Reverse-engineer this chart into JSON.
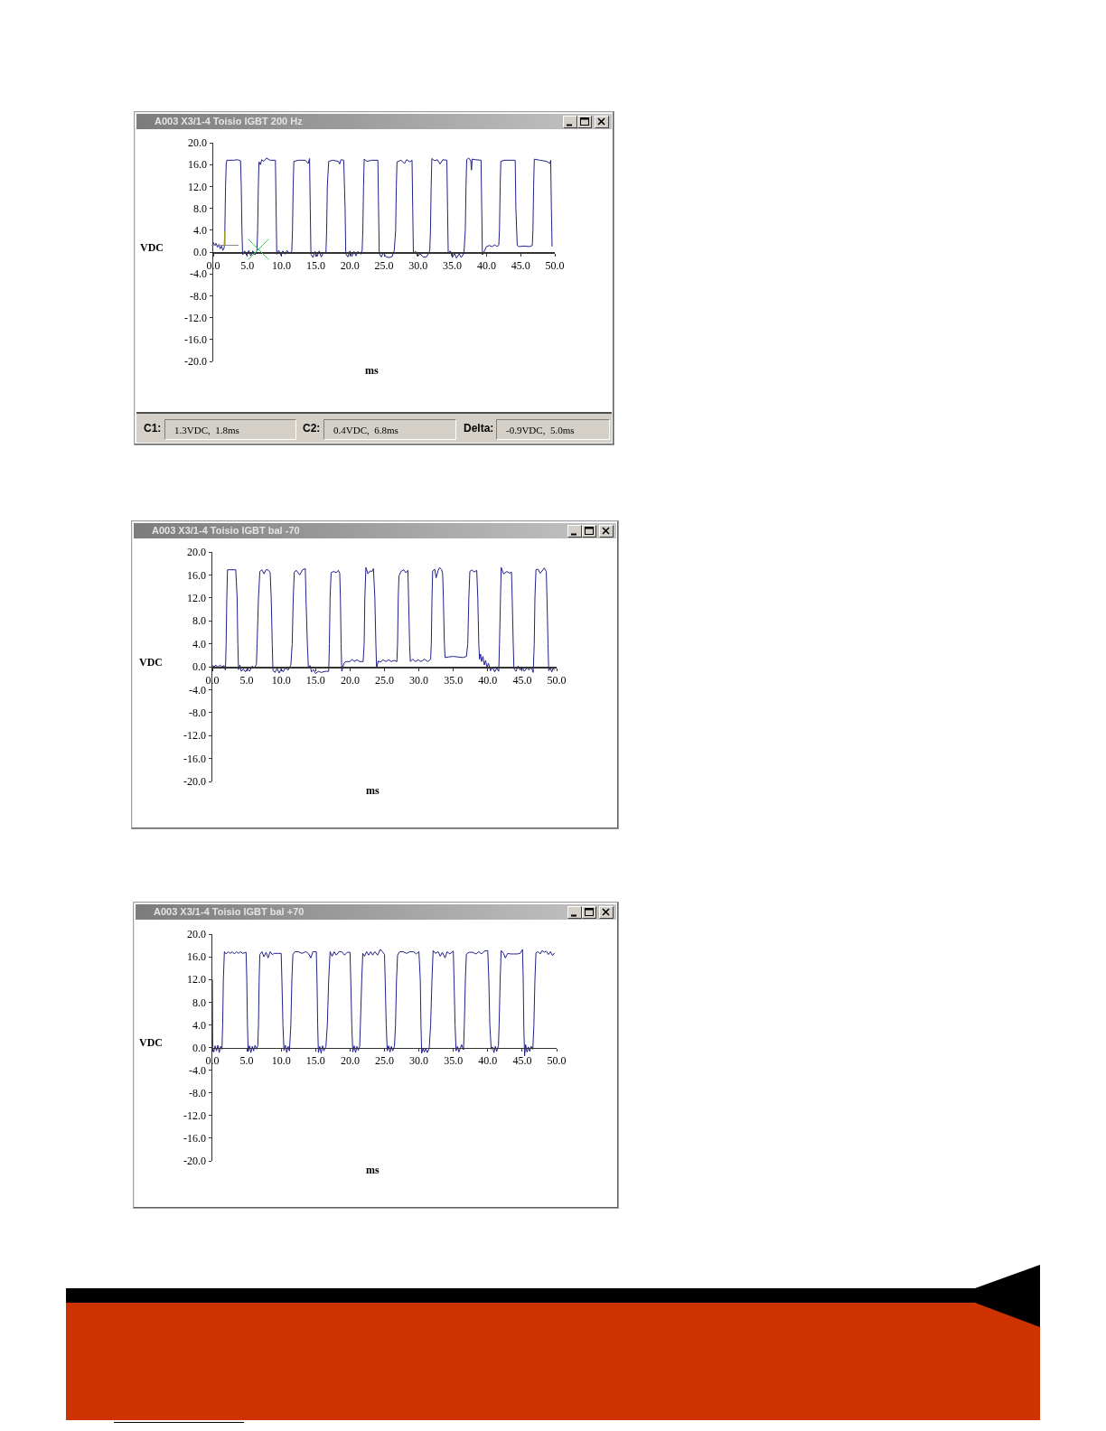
{
  "chart_data": [
    {
      "type": "line",
      "title": "A003 X3/1-4 Toisio IGBT 200 Hz",
      "xlabel": "ms",
      "ylabel": "VDC",
      "color": "#20208a",
      "xlim": [
        0,
        50
      ],
      "xticks": [
        {
          "value": 0,
          "label": "0.0"
        },
        {
          "value": 5,
          "label": "5.0"
        },
        {
          "value": 10,
          "label": "10.0"
        },
        {
          "value": 15,
          "label": "15.0"
        },
        {
          "value": 20,
          "label": "20.0"
        },
        {
          "value": 25,
          "label": "25.0"
        },
        {
          "value": 30,
          "label": "30.0"
        },
        {
          "value": 35,
          "label": "35.0"
        },
        {
          "value": 40,
          "label": "40.0"
        },
        {
          "value": 45,
          "label": "45.0"
        },
        {
          "value": 50,
          "label": "50.0"
        }
      ],
      "ylim": [
        -20,
        20
      ],
      "yticks": [
        {
          "value": 20,
          "label": "20.0"
        },
        {
          "value": 16,
          "label": "16.0"
        },
        {
          "value": 12,
          "label": "12.0"
        },
        {
          "value": 8,
          "label": "8.0"
        },
        {
          "value": 4,
          "label": "4.0"
        },
        {
          "value": 0,
          "label": "0.0"
        },
        {
          "value": -4,
          "label": "-4.0"
        },
        {
          "value": -8,
          "label": "-8.0"
        },
        {
          "value": -12,
          "label": "-12.0"
        },
        {
          "value": -16,
          "label": "-16.0"
        },
        {
          "value": -20,
          "label": "-20.0"
        }
      ],
      "annotations": [
        "C1:",
        "1.3VDC,  1.8ms",
        "C2:",
        "0.4VDC,  6.8ms",
        "Delta:",
        "-0.9VDC,  5.0ms"
      ],
      "x": [
        0,
        0.2,
        0.4,
        0.6,
        0.8,
        1.0,
        1.2,
        1.4,
        1.6,
        1.7,
        1.8,
        1.9,
        2.0,
        3.0,
        3.5,
        4.0,
        4.1,
        4.2,
        4.3,
        4.6,
        4.9,
        5.2,
        5.5,
        5.8,
        6.1,
        6.4,
        6.5,
        6.6,
        6.7,
        6.9,
        7.1,
        7.4,
        7.8,
        8.3,
        9.1,
        9.2,
        9.3,
        9.6,
        9.9,
        10.2,
        10.5,
        10.8,
        11.2,
        11.5,
        11.6,
        11.7,
        11.8,
        12.5,
        13.5,
        13.9,
        14.1,
        14.2,
        14.3,
        14.6,
        14.9,
        15.2,
        15.5,
        15.8,
        16.1,
        16.5,
        16.6,
        16.7,
        16.9,
        17.5,
        18.3,
        18.5,
        18.7,
        19.1,
        19.3,
        19.4,
        19.7,
        20.0,
        20.3,
        20.6,
        20.9,
        21.2,
        21.6,
        21.8,
        21.9,
        22.0,
        22.1,
        22.5,
        23.2,
        24.1,
        24.2,
        24.3,
        24.6,
        24.9,
        25.3,
        25.8,
        26.2,
        26.5,
        26.7,
        26.8,
        26.9,
        27.5,
        28.0,
        28.3,
        28.8,
        29.1,
        29.2,
        29.3,
        29.6,
        29.9,
        30.3,
        30.7,
        31.2,
        31.5,
        31.7,
        31.8,
        31.9,
        32.0,
        32.4,
        32.8,
        33.2,
        33.6,
        34.2,
        34.3,
        34.4,
        34.7,
        35.0,
        35.3,
        35.6,
        36.0,
        36.3,
        36.7,
        36.9,
        37.0,
        37.1,
        37.4,
        37.7,
        37.8,
        37.9,
        38.4,
        39.2,
        39.3,
        39.4,
        39.7,
        40.0,
        40.4,
        40.8,
        41.2,
        41.6,
        41.8,
        41.9,
        42.0,
        42.1,
        42.6,
        44.2,
        44.3,
        44.5,
        44.8,
        45.5,
        46.3,
        46.7,
        46.8,
        46.9,
        47.0,
        47.8,
        48.8,
        49.3,
        49.4,
        49.5,
        49.6
      ],
      "values": [
        1.8,
        1.2,
        1.6,
        0.9,
        1.4,
        0.6,
        1.1,
        0.3,
        0.8,
        4.0,
        12.0,
        16.2,
        16.8,
        16.8,
        16.9,
        16.7,
        12.0,
        4.0,
        -0.5,
        0.2,
        -0.6,
        0.3,
        -0.7,
        0.2,
        -0.5,
        0.3,
        4.0,
        12.0,
        16.5,
        16.0,
        16.9,
        16.6,
        17.2,
        16.8,
        16.8,
        8.0,
        -0.4,
        0.3,
        -0.6,
        0.2,
        -0.4,
        0.3,
        -0.3,
        0.2,
        4.0,
        12.0,
        16.6,
        16.8,
        16.8,
        16.2,
        17.1,
        8.0,
        -0.4,
        -1.0,
        0.1,
        -0.8,
        0.2,
        -0.9,
        -0.2,
        0.0,
        4.0,
        12.0,
        16.6,
        16.8,
        16.6,
        16.1,
        16.9,
        16.8,
        8.0,
        -0.3,
        -0.9,
        0.2,
        -0.8,
        0.1,
        -0.7,
        0.1,
        -0.4,
        0.3,
        4.0,
        12.0,
        17.0,
        16.6,
        16.8,
        16.8,
        8.0,
        -0.3,
        -0.9,
        -0.1,
        -0.9,
        -1.0,
        -0.8,
        0.3,
        4.0,
        12.0,
        16.5,
        16.8,
        16.2,
        16.9,
        16.5,
        16.8,
        8.0,
        -0.3,
        0.1,
        -0.8,
        -0.3,
        -0.9,
        -0.9,
        -0.3,
        0.3,
        4.0,
        12.0,
        17.1,
        16.7,
        16.9,
        16.1,
        16.9,
        16.8,
        8.0,
        -0.3,
        0.2,
        -1.0,
        -0.2,
        -1.1,
        -0.3,
        -1.0,
        -0.2,
        4.0,
        12.0,
        16.9,
        17.2,
        16.7,
        15.0,
        17.0,
        16.9,
        16.8,
        8.0,
        -0.5,
        0.2,
        1.0,
        1.2,
        1.0,
        1.3,
        1.0,
        1.3,
        4.0,
        12.0,
        16.6,
        16.8,
        16.8,
        8.0,
        1.2,
        1.0,
        1.1,
        1.0,
        1.2,
        4.0,
        12.0,
        17.0,
        16.8,
        16.6,
        16.2,
        16.8,
        8.0,
        1.0
      ]
    },
    {
      "type": "line",
      "title": "A003 X3/1-4 Toisio IGBT bal -70",
      "xlabel": "ms",
      "ylabel": "VDC",
      "color": "#20208a",
      "xlim": [
        0,
        50
      ],
      "xticks": [
        {
          "value": 0,
          "label": "0.0"
        },
        {
          "value": 5,
          "label": "5.0"
        },
        {
          "value": 10,
          "label": "10.0"
        },
        {
          "value": 15,
          "label": "15.0"
        },
        {
          "value": 20,
          "label": "20.0"
        },
        {
          "value": 25,
          "label": "25.0"
        },
        {
          "value": 30,
          "label": "30.0"
        },
        {
          "value": 35,
          "label": "35.0"
        },
        {
          "value": 40,
          "label": "40.0"
        },
        {
          "value": 45,
          "label": "45.0"
        },
        {
          "value": 50,
          "label": "50.0"
        }
      ],
      "ylim": [
        -20,
        20
      ],
      "yticks": [
        {
          "value": 20,
          "label": "20.0"
        },
        {
          "value": 16,
          "label": "16.0"
        },
        {
          "value": 12,
          "label": "12.0"
        },
        {
          "value": 8,
          "label": "8.0"
        },
        {
          "value": 4,
          "label": "4.0"
        },
        {
          "value": 0,
          "label": "0.0"
        },
        {
          "value": -4,
          "label": "-4.0"
        },
        {
          "value": -8,
          "label": "-8.0"
        },
        {
          "value": -12,
          "label": "-12.0"
        },
        {
          "value": -16,
          "label": "-16.0"
        },
        {
          "value": -20,
          "label": "-20.0"
        }
      ],
      "x": [
        0,
        0.3,
        0.5,
        0.8,
        1.1,
        1.4,
        1.7,
        1.9,
        2.0,
        2.1,
        2.2,
        3.4,
        3.6,
        3.7,
        3.8,
        4.0,
        4.2,
        4.5,
        4.8,
        5.1,
        5.4,
        5.8,
        6.1,
        6.4,
        6.5,
        6.7,
        6.9,
        7.2,
        7.5,
        7.8,
        8.1,
        8.4,
        8.55,
        8.7,
        8.8,
        9.1,
        9.4,
        9.7,
        10.0,
        10.3,
        10.6,
        11.0,
        11.4,
        11.6,
        11.75,
        11.9,
        12.2,
        12.7,
        13.1,
        13.5,
        13.6,
        13.8,
        13.95,
        14.2,
        14.4,
        14.7,
        15.0,
        15.4,
        15.8,
        16.4,
        16.9,
        17.0,
        17.1,
        17.25,
        17.6,
        18.0,
        18.3,
        18.5,
        18.6,
        18.7,
        18.8,
        19.1,
        19.4,
        20.0,
        20.3,
        20.6,
        21.0,
        21.4,
        21.9,
        22.05,
        22.15,
        22.3,
        22.6,
        22.9,
        23.2,
        23.4,
        23.6,
        23.75,
        23.85,
        24.1,
        24.4,
        24.8,
        25.2,
        25.6,
        26.0,
        26.4,
        26.8,
        26.9,
        27.0,
        27.1,
        27.4,
        27.8,
        28.1,
        28.4,
        28.5,
        28.65,
        28.75,
        29.1,
        29.5,
        29.9,
        30.3,
        30.8,
        31.3,
        31.7,
        31.8,
        31.9,
        32.0,
        32.3,
        32.5,
        32.8,
        33.0,
        33.3,
        33.45,
        33.55,
        33.7,
        33.8,
        34.3,
        35.0,
        35.7,
        36.4,
        36.9,
        37.1,
        37.25,
        37.4,
        37.7,
        38.0,
        38.4,
        38.55,
        38.7,
        38.8,
        38.95,
        39.1,
        39.3,
        39.5,
        39.7,
        39.9,
        40.1,
        40.4,
        40.7,
        41.0,
        41.3,
        41.6,
        41.7,
        41.85,
        41.95,
        42.3,
        42.8,
        43.2,
        43.45,
        43.55,
        43.7,
        43.8,
        44.1,
        44.4,
        44.7,
        45.0,
        45.3,
        45.7,
        46.0,
        46.3,
        46.6,
        46.75,
        46.85,
        47.0,
        47.3,
        47.6,
        47.9,
        48.2,
        48.5,
        48.6,
        48.75,
        48.85,
        49.1,
        49.3,
        49.5,
        49.7
      ],
      "values": [
        0.2,
        0.0,
        0.3,
        -0.1,
        0.3,
        0.0,
        0.2,
        -0.6,
        4.0,
        12.0,
        16.9,
        16.9,
        12.0,
        4.0,
        -0.5,
        0.3,
        -0.8,
        -0.4,
        -0.9,
        -0.3,
        -0.8,
        0.1,
        -0.2,
        0.4,
        4.0,
        12.0,
        16.6,
        16.9,
        16.2,
        16.9,
        16.9,
        16.4,
        12.0,
        4.0,
        -0.6,
        -1.0,
        -0.3,
        -1.1,
        -0.4,
        -0.9,
        -0.2,
        -0.6,
        0.3,
        4.0,
        12.0,
        16.5,
        16.8,
        16.0,
        16.9,
        17.1,
        12.0,
        4.0,
        -0.2,
        0.2,
        -0.9,
        -0.5,
        -1.2,
        -0.8,
        -1.0,
        -0.8,
        -0.8,
        4.0,
        12.0,
        16.4,
        16.6,
        16.4,
        16.8,
        16.3,
        12.0,
        4.0,
        -0.8,
        0.6,
        0.9,
        0.9,
        1.3,
        0.9,
        1.2,
        0.9,
        0.9,
        4.0,
        12.0,
        17.3,
        16.2,
        16.7,
        16.6,
        17.1,
        12.0,
        4.0,
        -0.2,
        1.0,
        0.8,
        1.2,
        0.9,
        1.2,
        0.9,
        1.1,
        0.9,
        4.0,
        12.0,
        15.8,
        16.6,
        16.9,
        16.4,
        16.8,
        12.0,
        4.0,
        0.9,
        1.3,
        0.9,
        1.2,
        0.9,
        1.3,
        0.9,
        1.3,
        4.0,
        12.0,
        16.7,
        17.0,
        15.5,
        16.8,
        17.3,
        16.9,
        16.2,
        12.0,
        4.0,
        1.6,
        1.7,
        1.8,
        1.7,
        1.6,
        1.8,
        4.0,
        12.0,
        16.6,
        16.9,
        16.5,
        16.8,
        12.0,
        4.0,
        1.3,
        2.2,
        0.9,
        1.8,
        0.3,
        1.1,
        -0.2,
        0.6,
        -0.7,
        -0.1,
        -0.9,
        -0.3,
        -0.8,
        4.0,
        12.0,
        17.3,
        16.2,
        16.6,
        16.3,
        16.5,
        12.0,
        4.0,
        -0.3,
        -0.8,
        0.1,
        -0.6,
        -0.1,
        -0.8,
        -0.2,
        -0.6,
        0.0,
        -1.0,
        4.0,
        12.0,
        16.9,
        17.0,
        16.3,
        16.7,
        17.2,
        16.6,
        12.0,
        4.0,
        -0.7,
        -0.2,
        -0.9,
        -0.3,
        -0.6
      ]
    },
    {
      "type": "line",
      "title": "A003 X3/1-4 Toisio IGBT bal +70",
      "xlabel": "ms",
      "ylabel": "VDC",
      "color": "#20208a",
      "xlim": [
        0,
        50
      ],
      "xticks": [
        {
          "value": 0,
          "label": "0.0"
        },
        {
          "value": 5,
          "label": "5.0"
        },
        {
          "value": 10,
          "label": "10.0"
        },
        {
          "value": 15,
          "label": "15.0"
        },
        {
          "value": 20,
          "label": "20.0"
        },
        {
          "value": 25,
          "label": "25.0"
        },
        {
          "value": 30,
          "label": "30.0"
        },
        {
          "value": 35,
          "label": "35.0"
        },
        {
          "value": 40,
          "label": "40.0"
        },
        {
          "value": 45,
          "label": "45.0"
        },
        {
          "value": 50,
          "label": "50.0"
        }
      ],
      "ylim": [
        -20,
        20
      ],
      "yticks": [
        {
          "value": 20,
          "label": "20.0"
        },
        {
          "value": 16,
          "label": "16.0"
        },
        {
          "value": 12,
          "label": "12.0"
        },
        {
          "value": 8,
          "label": "8.0"
        },
        {
          "value": 4,
          "label": "4.0"
        },
        {
          "value": 0,
          "label": "0.0"
        },
        {
          "value": -4,
          "label": "-4.0"
        },
        {
          "value": -8,
          "label": "-8.0"
        },
        {
          "value": -12,
          "label": "-12.0"
        },
        {
          "value": -16,
          "label": "-16.0"
        },
        {
          "value": -20,
          "label": "-20.0"
        }
      ],
      "x": [
        0,
        0.05,
        0.2,
        0.4,
        0.6,
        0.8,
        1.0,
        1.2,
        1.4,
        1.5,
        1.6,
        1.75,
        2.0,
        2.3,
        2.6,
        2.9,
        3.2,
        3.5,
        3.8,
        4.1,
        4.4,
        4.9,
        5.0,
        5.1,
        5.2,
        5.4,
        5.6,
        5.8,
        6.0,
        6.2,
        6.4,
        6.6,
        6.7,
        6.8,
        6.9,
        7.2,
        7.5,
        7.8,
        8.1,
        8.4,
        8.7,
        9.0,
        9.5,
        10.0,
        10.1,
        10.25,
        10.4,
        10.6,
        10.8,
        11.0,
        11.2,
        11.4,
        11.55,
        11.7,
        12.0,
        12.5,
        13.0,
        13.6,
        14.0,
        14.3,
        14.6,
        15.1,
        15.2,
        15.3,
        15.4,
        15.6,
        15.8,
        16.0,
        16.2,
        16.5,
        16.7,
        16.9,
        17.1,
        17.4,
        17.7,
        18.0,
        18.4,
        18.8,
        19.2,
        19.6,
        20.0,
        20.1,
        20.25,
        20.4,
        20.6,
        20.8,
        21.0,
        21.2,
        21.4,
        21.5,
        21.7,
        21.85,
        22.1,
        22.4,
        22.7,
        23.0,
        23.3,
        23.6,
        24.0,
        24.4,
        24.7,
        25.0,
        25.1,
        25.25,
        25.4,
        25.6,
        25.8,
        26.0,
        26.2,
        26.45,
        26.6,
        26.75,
        26.9,
        27.2,
        27.7,
        28.2,
        28.7,
        29.2,
        29.6,
        30.0,
        30.2,
        30.3,
        30.4,
        30.6,
        30.8,
        31.0,
        31.2,
        31.5,
        31.7,
        31.9,
        32.06,
        32.4,
        32.8,
        33.1,
        33.4,
        33.8,
        34.1,
        34.5,
        35.0,
        35.1,
        35.25,
        35.4,
        35.6,
        35.8,
        36.0,
        36.2,
        36.48,
        36.6,
        36.75,
        36.9,
        37.3,
        37.8,
        38.3,
        38.7,
        39.1,
        39.5,
        40.0,
        40.15,
        40.3,
        40.5,
        40.7,
        40.9,
        41.1,
        41.3,
        41.55,
        41.65,
        41.8,
        41.95,
        42.3,
        42.55,
        42.9,
        43.3,
        43.8,
        44.3,
        44.7,
        45.05,
        45.15,
        45.25,
        45.35,
        45.5,
        45.7,
        45.9,
        46.1,
        46.3,
        46.55,
        46.7,
        46.85,
        47.0,
        47.3,
        47.6,
        47.9,
        48.2,
        48.5,
        48.8,
        49.1,
        49.4,
        49.7
      ],
      "values": [
        12.0,
        0.0,
        -0.8,
        0.3,
        -0.6,
        0.4,
        -0.9,
        0.2,
        -0.3,
        4.0,
        12.0,
        16.9,
        16.5,
        16.9,
        16.6,
        16.9,
        16.5,
        16.9,
        16.6,
        16.9,
        16.6,
        16.8,
        12.0,
        4.0,
        -0.7,
        0.3,
        -0.9,
        0.2,
        -0.6,
        0.4,
        -0.3,
        0.3,
        4.0,
        12.0,
        16.4,
        16.9,
        16.0,
        16.8,
        15.8,
        16.9,
        16.4,
        16.6,
        16.6,
        16.6,
        12.0,
        4.0,
        -0.5,
        0.4,
        -0.9,
        0.2,
        -0.6,
        4.0,
        12.0,
        16.4,
        16.9,
        16.9,
        16.6,
        16.9,
        16.5,
        15.8,
        16.9,
        16.9,
        12.0,
        4.0,
        -0.9,
        0.2,
        -1.0,
        0.3,
        -0.6,
        0.2,
        4.0,
        12.0,
        16.9,
        16.1,
        16.9,
        16.3,
        16.9,
        16.9,
        16.3,
        16.8,
        16.8,
        12.0,
        4.0,
        -0.8,
        0.3,
        -0.9,
        0.2,
        -0.5,
        0.2,
        4.0,
        12.0,
        16.6,
        16.1,
        16.9,
        16.3,
        16.9,
        16.3,
        16.9,
        16.3,
        17.3,
        16.9,
        16.4,
        12.0,
        4.0,
        -0.6,
        0.3,
        -0.8,
        0.2,
        -0.6,
        0.2,
        4.0,
        12.0,
        16.3,
        16.9,
        16.9,
        16.6,
        16.9,
        16.9,
        16.5,
        16.9,
        12.0,
        4.0,
        -1.0,
        -0.2,
        -0.8,
        -0.1,
        -0.9,
        -0.2,
        4.0,
        12.0,
        17.1,
        16.6,
        16.9,
        16.1,
        16.8,
        15.8,
        16.9,
        16.5,
        17.0,
        12.0,
        4.0,
        -0.6,
        0.2,
        -0.8,
        -0.2,
        0.5,
        -0.4,
        4.0,
        12.0,
        16.5,
        16.8,
        16.8,
        16.5,
        16.9,
        16.5,
        17.0,
        17.1,
        12.0,
        4.0,
        -0.3,
        0.1,
        -0.9,
        0.2,
        -0.7,
        0.3,
        4.0,
        12.0,
        17.1,
        16.6,
        15.8,
        16.6,
        16.5,
        16.5,
        16.5,
        16.6,
        17.3,
        12.0,
        3.0,
        -1.5,
        0.5,
        -0.8,
        0.1,
        -0.7,
        0.2,
        -0.3,
        4.0,
        12.0,
        16.7,
        16.9,
        16.5,
        17.1,
        16.8,
        17.0,
        16.4,
        16.9,
        16.2,
        16.7
      ]
    }
  ]
}
